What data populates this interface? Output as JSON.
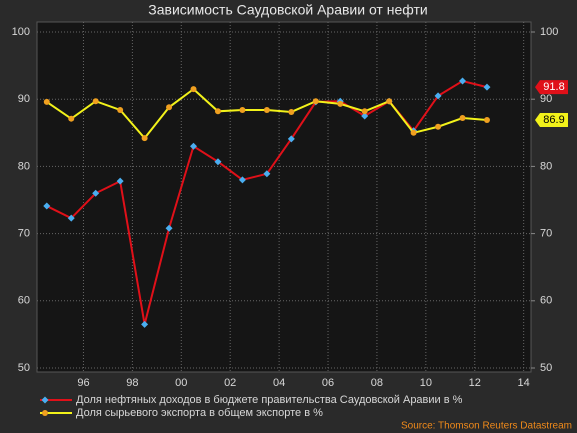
{
  "chart_data": {
    "type": "line",
    "title": "Зависимость Саудовской Аравии от нефти",
    "source": "Source: Thomson Reuters Datastream",
    "x": [
      1994.5,
      1995.5,
      1996.5,
      1997.5,
      1998.5,
      1999.5,
      2000.5,
      2001.5,
      2002.5,
      2003.5,
      2004.5,
      2005.5,
      2006.5,
      2007.5,
      2008.5,
      2009.5,
      2010.5,
      2011.5,
      2012.5
    ],
    "series": [
      {
        "name": "Доля нефтяных доходов в бюджете правительства Саудовской Аравии в %",
        "color": "#e01019",
        "marker_color": "#4aaef0",
        "values": [
          74.1,
          72.3,
          76.0,
          77.8,
          56.5,
          70.8,
          83.0,
          80.7,
          78.0,
          78.9,
          84.1,
          89.6,
          89.7,
          87.5,
          89.7,
          85.3,
          90.5,
          92.7,
          91.8
        ]
      },
      {
        "name": "Доля сырьевого экспорта в общем экспорте в %",
        "color": "#f2f21a",
        "marker_color": "#f0a020",
        "values": [
          89.6,
          87.1,
          89.7,
          88.4,
          84.2,
          88.8,
          91.5,
          88.2,
          88.4,
          88.4,
          88.1,
          89.7,
          89.3,
          88.2,
          89.7,
          85.0,
          85.9,
          87.2,
          86.9
        ]
      }
    ],
    "xlim": [
      1994.1,
      2014.3
    ],
    "xticks": [
      {
        "value": 1996,
        "label": "96"
      },
      {
        "value": 1998,
        "label": "98"
      },
      {
        "value": 2000,
        "label": "00"
      },
      {
        "value": 2002,
        "label": "02"
      },
      {
        "value": 2004,
        "label": "04"
      },
      {
        "value": 2006,
        "label": "06"
      },
      {
        "value": 2008,
        "label": "08"
      },
      {
        "value": 2010,
        "label": "10"
      },
      {
        "value": 2012,
        "label": "12"
      },
      {
        "value": 2014,
        "label": "14"
      }
    ],
    "ylim": [
      50,
      100
    ],
    "yticks": [
      50,
      60,
      70,
      80,
      90,
      100
    ],
    "y2lim": [
      50,
      100
    ],
    "y2ticks": [
      50,
      60,
      70,
      80,
      90,
      100
    ],
    "grid": true
  }
}
